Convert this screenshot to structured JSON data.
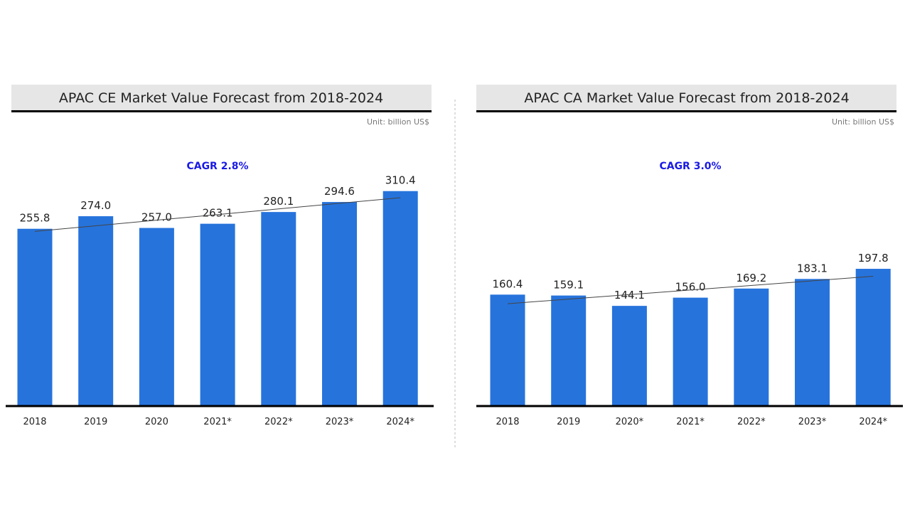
{
  "colors": {
    "bar": "#2673dc",
    "cagr": "#1a1ae6",
    "title_bg": "#e6e6e6",
    "axis": "#000000"
  },
  "chart_data": [
    {
      "type": "bar",
      "title": "APAC CE Market Value Forecast from 2018-2024",
      "unit": "Unit: billion US$",
      "annotation": "CAGR 2.8%",
      "categories": [
        "2018",
        "2019",
        "2020",
        "2021*",
        "2022*",
        "2023*",
        "2024*"
      ],
      "values": [
        255.8,
        274.0,
        257.0,
        263.1,
        280.1,
        294.6,
        310.4
      ],
      "value_labels": [
        "255.8",
        "274.0",
        "257.0",
        "263.1",
        "280.1",
        "294.6",
        "310.4"
      ],
      "trendline": true,
      "ylim": [
        0,
        340
      ],
      "grid": false
    },
    {
      "type": "bar",
      "title": "APAC CA Market Value Forecast from 2018-2024",
      "unit": "Unit: billion US$",
      "annotation": "CAGR 3.0%",
      "categories": [
        "2018",
        "2019",
        "2020*",
        "2021*",
        "2022*",
        "2023*",
        "2024*"
      ],
      "values": [
        160.4,
        159.1,
        144.1,
        156.0,
        169.2,
        183.1,
        197.8
      ],
      "value_labels": [
        "160.4",
        "159.1",
        "144.1",
        "156.0",
        "169.2",
        "183.1",
        "197.8"
      ],
      "trendline": true,
      "ylim": [
        0,
        340
      ],
      "grid": false
    }
  ]
}
